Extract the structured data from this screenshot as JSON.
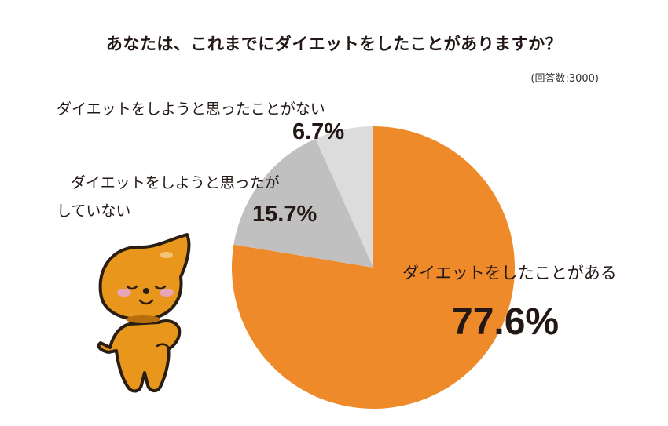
{
  "chart_data": {
    "type": "pie",
    "title": "あなたは、これまでにダイエットをしたことがありますか？",
    "note": "(回答数:3000)",
    "start": "top",
    "direction": "clockwise",
    "slices": [
      {
        "label": "ダイエットをしたことがある",
        "value": 77.6,
        "display": "77.6%",
        "color": "#EE8A2A"
      },
      {
        "label": "ダイエットをしようと思ったがしていない",
        "label_lines": [
          "ダイエットをしようと思ったが",
          "していない"
        ],
        "value": 15.7,
        "display": "15.7%",
        "color": "#C0C0C0"
      },
      {
        "label": "ダイエットをしようと思ったことがない",
        "value": 6.7,
        "display": "6.7%",
        "color": "#DCDCDC"
      }
    ]
  }
}
